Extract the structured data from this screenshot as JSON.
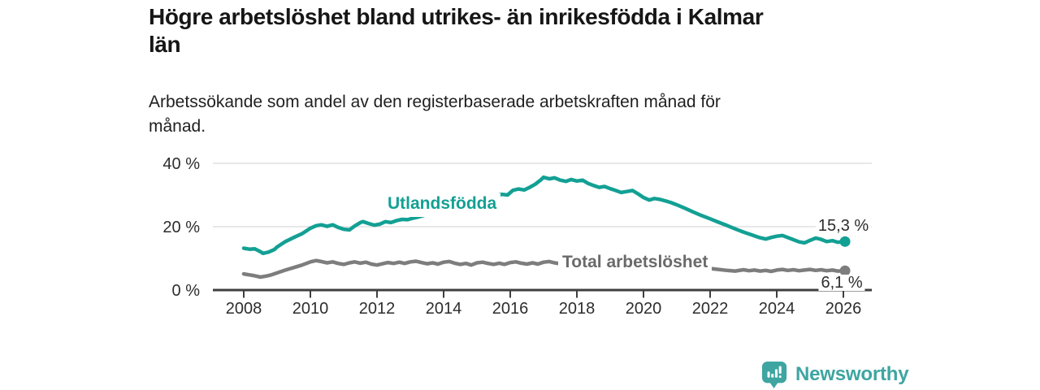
{
  "header": {
    "title": "Högre arbetslöshet bland utrikes- än inrikesfödda i Kalmar län",
    "title_lines": [
      "Högre arbetslöshet bland utrikes- än inrikesfödda i Kalmar",
      "län"
    ],
    "subtitle": "Arbetssökande som andel av den registerbaserade arbetskraften månad för månad.",
    "subtitle_lines": [
      "Arbetssökande som andel av den registerbaserade arbetskraften månad för",
      "månad."
    ]
  },
  "chart_data": {
    "type": "line",
    "title": "Högre arbetslöshet bland utrikes- än inrikesfödda i Kalmar län",
    "xlabel": "",
    "ylabel": "",
    "x_unit": "year, monthly observations",
    "xlim": [
      2007.1,
      2026.9
    ],
    "ylim": [
      0,
      42
    ],
    "grid": "horizontal",
    "legend_position": "inline-labels",
    "axis_color": "#3f3f3f",
    "grid_color": "#d9d9d9",
    "tick_label_color": "#2d2d2d",
    "y_ticks": [
      {
        "value": 0,
        "label": "0 %"
      },
      {
        "value": 20,
        "label": "20 %"
      },
      {
        "value": 40,
        "label": "40 %"
      }
    ],
    "x_ticks": [
      {
        "value": 2008,
        "label": "2008"
      },
      {
        "value": 2010,
        "label": "2010"
      },
      {
        "value": 2012,
        "label": "2012"
      },
      {
        "value": 2014,
        "label": "2014"
      },
      {
        "value": 2016,
        "label": "2016"
      },
      {
        "value": 2018,
        "label": "2018"
      },
      {
        "value": 2020,
        "label": "2020"
      },
      {
        "value": 2022,
        "label": "2022"
      },
      {
        "value": 2024,
        "label": "2024"
      },
      {
        "value": 2026,
        "label": "2026"
      }
    ],
    "series": [
      {
        "name": "Utlandsfödda",
        "color": "#13a094",
        "label_color": "#13a094",
        "end_value": 15.3,
        "end_label": "15,3 %",
        "points": [
          [
            2008.0,
            13.2
          ],
          [
            2008.17,
            12.9
          ],
          [
            2008.33,
            13.0
          ],
          [
            2008.5,
            12.1
          ],
          [
            2008.58,
            11.6
          ],
          [
            2008.75,
            12.0
          ],
          [
            2008.92,
            12.8
          ],
          [
            2009.0,
            13.6
          ],
          [
            2009.25,
            15.3
          ],
          [
            2009.5,
            16.6
          ],
          [
            2009.75,
            17.8
          ],
          [
            2010.0,
            19.5
          ],
          [
            2010.17,
            20.3
          ],
          [
            2010.33,
            20.6
          ],
          [
            2010.5,
            20.1
          ],
          [
            2010.67,
            20.6
          ],
          [
            2010.83,
            19.8
          ],
          [
            2011.0,
            19.2
          ],
          [
            2011.17,
            19.0
          ],
          [
            2011.33,
            20.2
          ],
          [
            2011.5,
            21.3
          ],
          [
            2011.58,
            21.6
          ],
          [
            2011.75,
            21.0
          ],
          [
            2011.92,
            20.5
          ],
          [
            2012.08,
            20.8
          ],
          [
            2012.25,
            21.6
          ],
          [
            2012.42,
            21.3
          ],
          [
            2012.58,
            21.9
          ],
          [
            2012.75,
            22.3
          ],
          [
            2012.92,
            22.2
          ],
          [
            2013.08,
            22.7
          ],
          [
            2013.25,
            23.1
          ],
          [
            2013.42,
            23.6
          ],
          [
            2013.58,
            24.1
          ],
          [
            2013.75,
            24.7
          ],
          [
            2013.92,
            25.2
          ],
          [
            2014.08,
            25.8
          ],
          [
            2014.25,
            26.4
          ],
          [
            2014.42,
            27.1
          ],
          [
            2014.58,
            27.7
          ],
          [
            2014.75,
            28.3
          ],
          [
            2014.92,
            28.8
          ],
          [
            2015.08,
            29.3
          ],
          [
            2015.25,
            29.6
          ],
          [
            2015.42,
            29.3
          ],
          [
            2015.58,
            29.8
          ],
          [
            2015.75,
            30.2
          ],
          [
            2015.92,
            30.0
          ],
          [
            2016.08,
            31.5
          ],
          [
            2016.25,
            31.9
          ],
          [
            2016.42,
            31.6
          ],
          [
            2016.58,
            32.4
          ],
          [
            2016.75,
            33.4
          ],
          [
            2016.92,
            34.8
          ],
          [
            2017.0,
            35.6
          ],
          [
            2017.17,
            35.1
          ],
          [
            2017.33,
            35.4
          ],
          [
            2017.5,
            34.7
          ],
          [
            2017.67,
            34.3
          ],
          [
            2017.83,
            34.9
          ],
          [
            2018.0,
            34.4
          ],
          [
            2018.17,
            34.7
          ],
          [
            2018.33,
            33.7
          ],
          [
            2018.5,
            33.0
          ],
          [
            2018.67,
            32.4
          ],
          [
            2018.83,
            32.7
          ],
          [
            2019.0,
            32.0
          ],
          [
            2019.17,
            31.4
          ],
          [
            2019.33,
            30.8
          ],
          [
            2019.5,
            31.1
          ],
          [
            2019.67,
            31.4
          ],
          [
            2019.83,
            30.4
          ],
          [
            2020.0,
            29.2
          ],
          [
            2020.17,
            28.4
          ],
          [
            2020.33,
            28.9
          ],
          [
            2020.5,
            28.6
          ],
          [
            2020.67,
            28.1
          ],
          [
            2020.83,
            27.6
          ],
          [
            2021.0,
            26.9
          ],
          [
            2021.25,
            25.8
          ],
          [
            2021.5,
            24.6
          ],
          [
            2021.75,
            23.5
          ],
          [
            2022.0,
            22.5
          ],
          [
            2022.25,
            21.4
          ],
          [
            2022.5,
            20.4
          ],
          [
            2022.75,
            19.3
          ],
          [
            2023.0,
            18.3
          ],
          [
            2023.17,
            17.7
          ],
          [
            2023.33,
            17.1
          ],
          [
            2023.5,
            16.5
          ],
          [
            2023.67,
            16.1
          ],
          [
            2023.83,
            16.6
          ],
          [
            2024.0,
            17.0
          ],
          [
            2024.17,
            17.2
          ],
          [
            2024.33,
            16.6
          ],
          [
            2024.5,
            15.9
          ],
          [
            2024.67,
            15.2
          ],
          [
            2024.83,
            14.9
          ],
          [
            2025.0,
            15.7
          ],
          [
            2025.17,
            16.4
          ],
          [
            2025.33,
            16.0
          ],
          [
            2025.5,
            15.3
          ],
          [
            2025.67,
            15.6
          ],
          [
            2025.83,
            15.1
          ],
          [
            2026.05,
            15.3
          ]
        ]
      },
      {
        "name": "Total arbetslöshet",
        "color": "#7d7d7d",
        "label_color": "#6a6a6a",
        "end_value": 6.1,
        "end_label": "6,1 %",
        "points": [
          [
            2008.0,
            5.1
          ],
          [
            2008.17,
            4.8
          ],
          [
            2008.33,
            4.5
          ],
          [
            2008.5,
            4.1
          ],
          [
            2008.67,
            4.4
          ],
          [
            2008.83,
            4.8
          ],
          [
            2009.0,
            5.4
          ],
          [
            2009.25,
            6.3
          ],
          [
            2009.5,
            7.1
          ],
          [
            2009.75,
            7.9
          ],
          [
            2010.0,
            8.9
          ],
          [
            2010.17,
            9.3
          ],
          [
            2010.33,
            9.0
          ],
          [
            2010.5,
            8.6
          ],
          [
            2010.67,
            8.9
          ],
          [
            2010.83,
            8.4
          ],
          [
            2011.0,
            8.1
          ],
          [
            2011.17,
            8.6
          ],
          [
            2011.33,
            8.9
          ],
          [
            2011.5,
            8.5
          ],
          [
            2011.67,
            8.8
          ],
          [
            2011.83,
            8.2
          ],
          [
            2012.0,
            7.9
          ],
          [
            2012.17,
            8.3
          ],
          [
            2012.33,
            8.7
          ],
          [
            2012.5,
            8.4
          ],
          [
            2012.67,
            8.8
          ],
          [
            2012.83,
            8.4
          ],
          [
            2013.0,
            8.9
          ],
          [
            2013.17,
            9.1
          ],
          [
            2013.33,
            8.7
          ],
          [
            2013.5,
            8.3
          ],
          [
            2013.67,
            8.6
          ],
          [
            2013.83,
            8.2
          ],
          [
            2014.0,
            8.8
          ],
          [
            2014.17,
            9.0
          ],
          [
            2014.33,
            8.5
          ],
          [
            2014.5,
            8.1
          ],
          [
            2014.67,
            8.4
          ],
          [
            2014.83,
            7.9
          ],
          [
            2015.0,
            8.6
          ],
          [
            2015.17,
            8.8
          ],
          [
            2015.33,
            8.4
          ],
          [
            2015.5,
            8.1
          ],
          [
            2015.67,
            8.5
          ],
          [
            2015.83,
            8.1
          ],
          [
            2016.0,
            8.7
          ],
          [
            2016.17,
            8.9
          ],
          [
            2016.33,
            8.5
          ],
          [
            2016.5,
            8.2
          ],
          [
            2016.67,
            8.6
          ],
          [
            2016.83,
            8.2
          ],
          [
            2017.0,
            8.8
          ],
          [
            2017.17,
            9.0
          ],
          [
            2017.33,
            8.6
          ],
          [
            2017.5,
            8.3
          ],
          [
            2017.67,
            8.7
          ],
          [
            2017.83,
            8.4
          ],
          [
            2018.0,
            9.0
          ],
          [
            2018.17,
            9.1
          ],
          [
            2018.33,
            8.7
          ],
          [
            2018.5,
            8.3
          ],
          [
            2018.67,
            8.6
          ],
          [
            2018.83,
            8.2
          ],
          [
            2019.0,
            8.5
          ],
          [
            2019.25,
            8.1
          ],
          [
            2019.5,
            8.4
          ],
          [
            2019.75,
            8.1
          ],
          [
            2020.0,
            8.7
          ],
          [
            2020.25,
            9.1
          ],
          [
            2020.5,
            8.9
          ],
          [
            2020.75,
            8.5
          ],
          [
            2021.0,
            8.2
          ],
          [
            2021.25,
            7.8
          ],
          [
            2021.5,
            7.4
          ],
          [
            2021.75,
            7.1
          ],
          [
            2022.0,
            6.8
          ],
          [
            2022.25,
            6.5
          ],
          [
            2022.5,
            6.2
          ],
          [
            2022.75,
            6.0
          ],
          [
            2023.0,
            6.4
          ],
          [
            2023.17,
            6.1
          ],
          [
            2023.33,
            6.3
          ],
          [
            2023.5,
            6.0
          ],
          [
            2023.67,
            6.2
          ],
          [
            2023.83,
            5.9
          ],
          [
            2024.0,
            6.3
          ],
          [
            2024.17,
            6.5
          ],
          [
            2024.33,
            6.2
          ],
          [
            2024.5,
            6.4
          ],
          [
            2024.67,
            6.1
          ],
          [
            2024.83,
            6.3
          ],
          [
            2025.0,
            6.5
          ],
          [
            2025.17,
            6.2
          ],
          [
            2025.33,
            6.4
          ],
          [
            2025.5,
            6.1
          ],
          [
            2025.67,
            6.3
          ],
          [
            2025.83,
            6.0
          ],
          [
            2026.05,
            6.1
          ]
        ]
      }
    ]
  },
  "branding": {
    "text": "Newsworthy",
    "color": "#3ea5a1"
  }
}
